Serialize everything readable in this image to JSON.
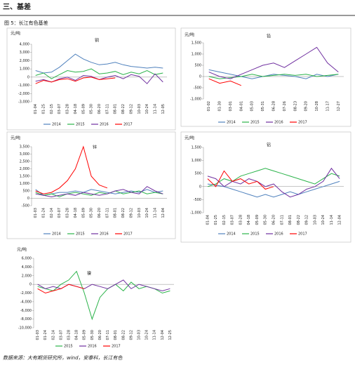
{
  "header": {
    "section": "三、基差",
    "figure": "图 5：长江有色基差"
  },
  "footer": "数据来源：大有期货研究所，wind，安泰科，长江有色",
  "chart_data": [
    {
      "type": "line",
      "title": "铜",
      "y_label": "元/吨",
      "categories": [
        "01-04",
        "01-25",
        "02-15",
        "03-07",
        "03-28",
        "04-18",
        "05-09",
        "05-30",
        "06-20",
        "07-11",
        "08-01",
        "08-22",
        "09-12",
        "10-03",
        "10-24",
        "11-14",
        "12-05"
      ],
      "series": [
        {
          "name": "2014",
          "color": "#4f81bd",
          "values": [
            800,
            500,
            600,
            1200,
            2000,
            2800,
            2200,
            1800,
            1500,
            1600,
            1800,
            1500,
            1300,
            1200,
            1100,
            1200,
            1100
          ]
        },
        {
          "name": "2015",
          "color": "#2bb34a",
          "values": [
            200,
            500,
            -200,
            300,
            800,
            600,
            700,
            1000,
            400,
            500,
            700,
            300,
            600,
            400,
            800,
            300,
            500
          ]
        },
        {
          "name": "2016",
          "color": "#7030a0",
          "values": [
            -500,
            -300,
            -600,
            -200,
            0,
            -400,
            200,
            100,
            -300,
            0,
            200,
            -200,
            300,
            100,
            -800,
            400,
            -600
          ]
        },
        {
          "name": "2017",
          "color": "#ff0000",
          "values": [
            -800,
            -400,
            -600,
            -300,
            -200,
            -500,
            -100,
            0,
            -300,
            -200,
            -100,
            null,
            null,
            null,
            null,
            null,
            null
          ]
        }
      ],
      "ylim": [
        -3000,
        4000
      ],
      "yticks": [
        {
          "value": 4000,
          "label": "4,000"
        },
        {
          "value": 3000,
          "label": "3,000"
        },
        {
          "value": 2000,
          "label": "2,000"
        },
        {
          "value": 1000,
          "label": "1,000"
        },
        0,
        {
          "value": -1000,
          "label": "-1,000"
        },
        {
          "value": -2000,
          "label": "-2,000"
        },
        {
          "value": -3000,
          "label": "-3,000"
        }
      ]
    },
    {
      "type": "line",
      "title": "铅",
      "y_label": "元/吨",
      "categories": [
        "01-02",
        "01-30",
        "03-01",
        "04-01",
        "05-03",
        "05-31",
        "06-28",
        "07-26",
        "08-23",
        "09-20",
        "10-28",
        "11-17",
        "12-27"
      ],
      "series": [
        {
          "name": "2014",
          "color": "#4f81bd",
          "values": [
            300,
            200,
            100,
            0,
            -100,
            0,
            100,
            50,
            0,
            -100,
            100,
            0,
            100
          ]
        },
        {
          "name": "2015",
          "color": "#2bb34a",
          "values": [
            0,
            -100,
            -50,
            0,
            100,
            0,
            50,
            100,
            50,
            100,
            0,
            50,
            100
          ]
        },
        {
          "name": "2016",
          "color": "#7030a0",
          "values": [
            200,
            0,
            -100,
            100,
            300,
            500,
            600,
            400,
            700,
            1000,
            1300,
            600,
            200
          ]
        },
        {
          "name": "2017",
          "color": "#ff0000",
          "values": [
            -100,
            -300,
            -200,
            -400,
            null,
            null,
            null,
            null,
            null,
            null,
            null,
            null,
            null
          ]
        }
      ],
      "ylim": [
        -1000,
        1500
      ],
      "yticks": [
        {
          "value": 1500,
          "label": "1,500"
        },
        {
          "value": 1000,
          "label": "1,000"
        },
        500,
        0,
        -500,
        {
          "value": -1000,
          "label": "-1,000"
        }
      ]
    },
    {
      "type": "line",
      "title": "锌",
      "y_label": "元/吨",
      "categories": [
        "01-03",
        "01-24",
        "02-14",
        "03-07",
        "03-28",
        "04-18",
        "05-09",
        "05-30",
        "06-20",
        "07-11",
        "08-01",
        "08-22",
        "09-12",
        "10-03",
        "10-24",
        "11-14",
        "12-04"
      ],
      "series": [
        {
          "name": "2014",
          "color": "#4f81bd",
          "values": [
            600,
            200,
            300,
            400,
            400,
            500,
            400,
            600,
            500,
            400,
            300,
            400,
            500,
            400,
            600,
            400,
            500
          ]
        },
        {
          "name": "2015",
          "color": "#2bb34a",
          "values": [
            400,
            200,
            300,
            100,
            300,
            400,
            300,
            200,
            400,
            300,
            500,
            300,
            400,
            500,
            300,
            400,
            300
          ]
        },
        {
          "name": "2016",
          "color": "#7030a0",
          "values": [
            300,
            200,
            100,
            200,
            300,
            200,
            400,
            300,
            200,
            300,
            500,
            600,
            400,
            300,
            800,
            500,
            300
          ]
        },
        {
          "name": "2017",
          "color": "#ff0000",
          "values": [
            500,
            300,
            400,
            700,
            1200,
            2000,
            3500,
            1500,
            900,
            700,
            null,
            null,
            null,
            null,
            null,
            null,
            null
          ]
        }
      ],
      "ylim": [
        -500,
        3500
      ],
      "yticks": [
        {
          "value": 3500,
          "label": "3,500"
        },
        {
          "value": 3000,
          "label": "3,000"
        },
        {
          "value": 2500,
          "label": "2,500"
        },
        {
          "value": 2000,
          "label": "2,000"
        },
        {
          "value": 1500,
          "label": "1,500"
        },
        {
          "value": 1000,
          "label": "1,000"
        },
        500,
        0,
        -500
      ]
    },
    {
      "type": "line",
      "title": "铝",
      "y_label": "元/吨",
      "categories": [
        "01-04",
        "01-25",
        "02-15",
        "03-07",
        "03-28",
        "04-18",
        "05-09",
        "05-30",
        "06-20",
        "07-11",
        "08-01",
        "08-22",
        "09-12",
        "10-03",
        "10-24",
        "11-14",
        "12-04"
      ],
      "series": [
        {
          "name": "2014",
          "color": "#4f81bd",
          "values": [
            100,
            50,
            0,
            -100,
            -200,
            -300,
            -400,
            -300,
            -400,
            -300,
            -200,
            -300,
            -200,
            -100,
            0,
            100,
            200
          ]
        },
        {
          "name": "2015",
          "color": "#2bb34a",
          "values": [
            0,
            100,
            300,
            200,
            400,
            500,
            600,
            700,
            600,
            500,
            400,
            300,
            200,
            100,
            300,
            500,
            400
          ]
        },
        {
          "name": "2016",
          "color": "#7030a0",
          "values": [
            400,
            300,
            0,
            200,
            100,
            300,
            200,
            0,
            100,
            -200,
            -400,
            -300,
            -100,
            0,
            200,
            700,
            300
          ]
        },
        {
          "name": "2017",
          "color": "#ff0000",
          "values": [
            300,
            0,
            600,
            200,
            300,
            100,
            200,
            -100,
            0,
            null,
            null,
            null,
            null,
            null,
            null,
            null,
            null
          ]
        }
      ],
      "ylim": [
        -1000,
        1500
      ],
      "yticks": [
        {
          "value": 1500,
          "label": "1,500"
        },
        {
          "value": 1000,
          "label": "1,000"
        },
        500,
        0,
        -500,
        {
          "value": -1000,
          "label": "-1,000"
        }
      ]
    },
    {
      "type": "line",
      "title": "镍",
      "y_label": "元/吨",
      "categories": [
        "01-03",
        "01-24",
        "02-14",
        "03-07",
        "03-28",
        "04-18",
        "05-09",
        "05-30",
        "06-20",
        "07-11",
        "08-01",
        "08-22",
        "09-12",
        "10-03",
        "10-24",
        "11-14",
        "12-04",
        "12-25"
      ],
      "series": [
        {
          "name": "2015",
          "color": "#2bb34a",
          "values": [
            -500,
            -1000,
            -1500,
            0,
            1000,
            3000,
            -2000,
            -8000,
            -3000,
            -1000,
            0,
            -1500,
            500,
            -1000,
            -500,
            -1000,
            -2000,
            -1500
          ]
        },
        {
          "name": "2016",
          "color": "#7030a0",
          "values": [
            0,
            -1000,
            -500,
            -1000,
            0,
            -500,
            -1000,
            0,
            -500,
            -1000,
            0,
            1000,
            -1000,
            0,
            -500,
            -1000,
            -1500,
            -1000
          ]
        },
        {
          "name": "2017",
          "color": "#ff0000",
          "values": [
            -1000,
            -2000,
            -1500,
            -1000,
            0,
            -500,
            -1000,
            null,
            null,
            null,
            null,
            null,
            null,
            null,
            null,
            null,
            null,
            null
          ]
        }
      ],
      "ylim": [
        -10000,
        6000
      ],
      "yticks": [
        {
          "value": 6000,
          "label": "6,000"
        },
        {
          "value": 4000,
          "label": "4,000"
        },
        {
          "value": 2000,
          "label": "2,000"
        },
        0,
        {
          "value": -2000,
          "label": "-2,000"
        },
        {
          "value": -4000,
          "label": "-4,000"
        },
        {
          "value": -6000,
          "label": "-6,000"
        },
        {
          "value": -8000,
          "label": "-8,000"
        },
        {
          "value": -10000,
          "label": "-10,000"
        }
      ]
    }
  ]
}
